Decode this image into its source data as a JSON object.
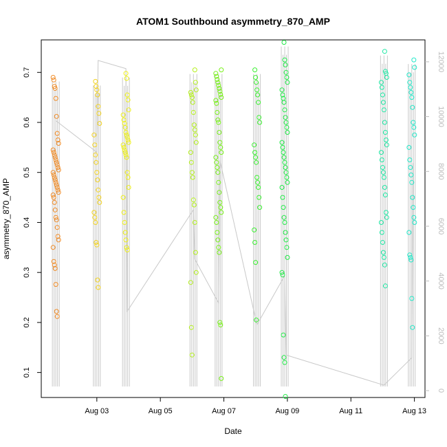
{
  "chart_data": {
    "type": "scatter",
    "title": "ATOM1 Southbound asymmetry_870_AMP",
    "xlabel": "Date",
    "ylabel": "asymmetry_870_AMP",
    "y2label": "",
    "xlim": [
      "2023-08-01T06:00",
      "2023-08-13T08:00"
    ],
    "ylim": [
      0.05,
      0.765
    ],
    "y2lim": [
      -250,
      12800
    ],
    "x_ticks": [
      {
        "label": "Aug 03",
        "date": "2023-08-03"
      },
      {
        "label": "Aug 05",
        "date": "2023-08-05"
      },
      {
        "label": "Aug 07",
        "date": "2023-08-07"
      },
      {
        "label": "Aug 09",
        "date": "2023-08-09"
      },
      {
        "label": "Aug 11",
        "date": "2023-08-11"
      },
      {
        "label": "Aug 13",
        "date": "2023-08-13"
      }
    ],
    "y_ticks": [
      0.1,
      0.2,
      0.3,
      0.4,
      0.5,
      0.6,
      0.7
    ],
    "y_tick_labels": [
      "0.1",
      "0.2",
      "0.3",
      "0.4",
      "0.5",
      "0.6",
      "0.7"
    ],
    "y2_ticks": [
      0,
      2000,
      4000,
      6000,
      8000,
      10000,
      12000
    ],
    "y2_tick_labels": [
      "0",
      "2000",
      "4000",
      "6000",
      "8000",
      "10000",
      "12000"
    ],
    "point_style": "open circle, colour graded orange to yellow to green to cyan by time",
    "line_color": "#c8c8c8",
    "clusters": [
      {
        "date": "2023-08-01T17:00",
        "color": "#f08a24",
        "y": [
          0.69,
          0.685,
          0.672,
          0.668,
          0.648,
          0.612,
          0.578,
          0.565,
          0.558,
          0.545,
          0.54,
          0.535,
          0.53,
          0.525,
          0.52,
          0.515,
          0.51,
          0.505,
          0.5,
          0.495,
          0.49,
          0.485,
          0.48,
          0.475,
          0.47,
          0.465,
          0.46,
          0.455,
          0.45,
          0.44,
          0.425,
          0.41,
          0.405,
          0.39,
          0.372,
          0.365,
          0.35,
          0.322,
          0.315,
          0.308,
          0.276,
          0.222,
          0.212
        ]
      },
      {
        "date": "2023-08-03T00:00",
        "color": "#f2d21e",
        "y": [
          0.682,
          0.672,
          0.665,
          0.655,
          0.632,
          0.618,
          0.598,
          0.575,
          0.555,
          0.535,
          0.52,
          0.5,
          0.485,
          0.465,
          0.45,
          0.44,
          0.42,
          0.41,
          0.4,
          0.36,
          0.355,
          0.285,
          0.27
        ]
      },
      {
        "date": "2023-08-03T22:00",
        "color": "#eef018",
        "y": [
          0.698,
          0.688,
          0.655,
          0.645,
          0.625,
          0.615,
          0.605,
          0.598,
          0.59,
          0.58,
          0.575,
          0.57,
          0.565,
          0.56,
          0.555,
          0.55,
          0.545,
          0.54,
          0.535,
          0.53,
          0.5,
          0.49,
          0.47,
          0.45,
          0.42,
          0.4,
          0.38,
          0.365,
          0.35,
          0.345
        ]
      },
      {
        "date": "2023-08-06T01:00",
        "color": "#b4f01c",
        "y": [
          0.705,
          0.68,
          0.665,
          0.66,
          0.655,
          0.65,
          0.64,
          0.62,
          0.595,
          0.585,
          0.575,
          0.56,
          0.54,
          0.52,
          0.5,
          0.49,
          0.445,
          0.435,
          0.4,
          0.34,
          0.3,
          0.28,
          0.19,
          0.135
        ]
      },
      {
        "date": "2023-08-06T20:00",
        "color": "#78f01a",
        "y": [
          0.705,
          0.698,
          0.692,
          0.686,
          0.68,
          0.674,
          0.668,
          0.662,
          0.656,
          0.65,
          0.644,
          0.638,
          0.62,
          0.605,
          0.6,
          0.58,
          0.56,
          0.55,
          0.54,
          0.53,
          0.52,
          0.51,
          0.5,
          0.48,
          0.46,
          0.44,
          0.43,
          0.42,
          0.41,
          0.4,
          0.38,
          0.365,
          0.35,
          0.34,
          0.2,
          0.195,
          0.088
        ]
      },
      {
        "date": "2023-08-08T01:00",
        "color": "#3af030",
        "y": [
          0.705,
          0.69,
          0.68,
          0.665,
          0.655,
          0.64,
          0.61,
          0.6,
          0.555,
          0.54,
          0.53,
          0.52,
          0.49,
          0.48,
          0.47,
          0.45,
          0.43,
          0.385,
          0.36,
          0.32,
          0.205
        ]
      },
      {
        "date": "2023-08-08T22:00",
        "color": "#22ea48",
        "y": [
          0.76,
          0.725,
          0.715,
          0.7,
          0.69,
          0.68,
          0.665,
          0.655,
          0.648,
          0.64,
          0.625,
          0.61,
          0.6,
          0.59,
          0.58,
          0.56,
          0.55,
          0.54,
          0.53,
          0.52,
          0.51,
          0.5,
          0.49,
          0.48,
          0.47,
          0.45,
          0.43,
          0.41,
          0.4,
          0.38,
          0.365,
          0.35,
          0.33,
          0.3,
          0.295,
          0.175,
          0.13,
          0.12,
          0.052
        ]
      },
      {
        "date": "2023-08-12T01:00",
        "color": "#1ee8a4",
        "y": [
          0.742,
          0.702,
          0.698,
          0.69,
          0.68,
          0.67,
          0.655,
          0.64,
          0.625,
          0.6,
          0.58,
          0.565,
          0.555,
          0.54,
          0.525,
          0.51,
          0.5,
          0.49,
          0.47,
          0.455,
          0.42,
          0.41,
          0.4,
          0.38,
          0.36,
          0.34,
          0.33,
          0.315,
          0.273
        ]
      },
      {
        "date": "2023-08-12T22:00",
        "color": "#20e8c8",
        "y": [
          0.725,
          0.71,
          0.695,
          0.68,
          0.67,
          0.66,
          0.65,
          0.63,
          0.6,
          0.59,
          0.575,
          0.55,
          0.525,
          0.51,
          0.495,
          0.48,
          0.45,
          0.43,
          0.41,
          0.4,
          0.38,
          0.335,
          0.33,
          0.325,
          0.248,
          0.19
        ]
      }
    ],
    "secondary_line": [
      {
        "date": "2023-08-01T17:00",
        "y2": 9850
      },
      {
        "date": "2023-08-03T00:00",
        "y2": 8700
      },
      {
        "date": "2023-08-03T01:00",
        "y2": 12050
      },
      {
        "date": "2023-08-03T22:00",
        "y2": 11750
      },
      {
        "date": "2023-08-03T23:00",
        "y2": 2900
      },
      {
        "date": "2023-08-06T01:00",
        "y2": 6600
      },
      {
        "date": "2023-08-06T02:00",
        "y2": 4800
      },
      {
        "date": "2023-08-06T20:00",
        "y2": 3200
      },
      {
        "date": "2023-08-06T21:00",
        "y2": 8400
      },
      {
        "date": "2023-08-08T01:00",
        "y2": 2400
      },
      {
        "date": "2023-08-08T22:00",
        "y2": 4200
      },
      {
        "date": "2023-08-08T23:00",
        "y2": 1300
      },
      {
        "date": "2023-08-12T01:00",
        "y2": 200
      },
      {
        "date": "2023-08-12T22:00",
        "y2": 1200
      },
      {
        "date": "2023-08-12T23:00",
        "y2": 8300
      }
    ]
  }
}
